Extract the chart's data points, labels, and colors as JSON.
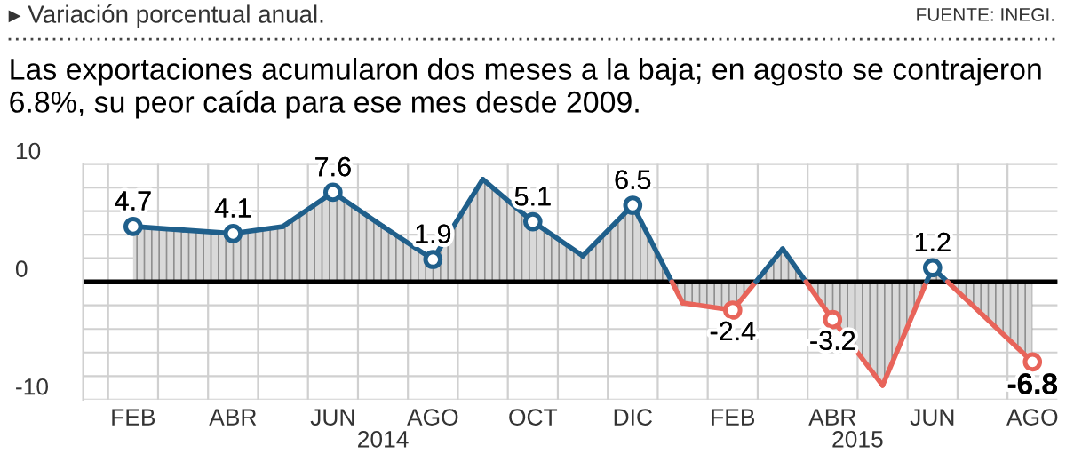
{
  "chart_data": {
    "type": "area",
    "title": "Las exportaciones acumularon dos meses a la baja; en agosto se contrajeron 6.8%, su peor caída para ese mes desde 2009.",
    "subtitle": "▸ Variación porcentual anual.",
    "annotations": [
      "FUENTE: INEGI.",
      "2014",
      "2015"
    ],
    "categories": [
      "FEB",
      null,
      "ABR",
      null,
      "JUN",
      null,
      "AGO",
      null,
      "OCT",
      null,
      "DIC",
      null,
      "FEB",
      null,
      "ABR",
      null,
      "JUN",
      null,
      "AGO"
    ],
    "series": [
      {
        "values": [
          4.7,
          4.4,
          4.1,
          4.7,
          7.6,
          4.7,
          1.9,
          8.7,
          5.1,
          2.2,
          6.5,
          -1.8,
          -2.4,
          2.8,
          -3.2,
          -8.8,
          1.2,
          -2.8,
          -6.8
        ],
        "colors": [
          "#1f5f8b",
          "#1f5f8b",
          "#1f5f8b",
          "#1f5f8b",
          "#1f5f8b",
          "#1f5f8b",
          "#1f5f8b",
          "#1f5f8b",
          "#1f5f8b",
          "#1f5f8b",
          "#1f5f8b",
          "#e8645a",
          "#e8645a",
          "#1f5f8b",
          "#e8645a",
          "#e8645a",
          "#1f5f8b",
          "#e8645a",
          "#e8645a"
        ],
        "value_labels": [
          "4.7",
          null,
          "4.1",
          null,
          "7.6",
          null,
          "1.9",
          null,
          "5.1",
          null,
          "6.5",
          null,
          "-2.4",
          null,
          "-3.2",
          null,
          "1.2",
          null,
          "-6.8"
        ]
      }
    ],
    "ylim": [
      -10,
      10
    ],
    "yticks": [
      -10,
      {
        "value": -8,
        "label": null
      },
      {
        "value": -6,
        "label": null
      },
      {
        "value": -4,
        "label": null
      },
      {
        "value": -2,
        "label": null
      },
      0,
      {
        "value": 2,
        "label": null
      },
      {
        "value": 4,
        "label": null
      },
      {
        "value": 6,
        "label": null
      },
      {
        "value": 8,
        "label": null
      },
      10
    ],
    "grid": true,
    "marker": "circle",
    "line_style": "solid",
    "legend": false
  }
}
